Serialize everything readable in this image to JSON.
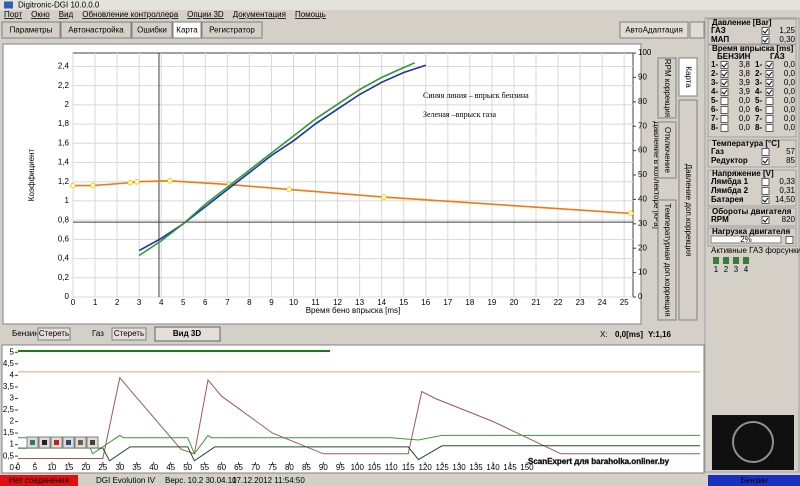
{
  "window": {
    "title": "Digitronic-DGI  10.0.0.0"
  },
  "menu": [
    "Порт",
    "Окно",
    "Вид",
    "Обновление контроллера",
    "Опции 3D",
    "Документация",
    "Помощь"
  ],
  "tabs": [
    "Параметры",
    "Автонастройка",
    "Ошибки",
    "Карта",
    "Регистратор"
  ],
  "autoadapt_button": "АвтоАдаптация",
  "side_tabs": [
    "Карта",
    "RPM коррекция",
    "Отключение",
    "Температурная доп.коррекция",
    "Давление доп.коррекция"
  ],
  "map_chart": {
    "type": "line",
    "annotations": [
      {
        "text": "Синяя линия – впрыск бензина",
        "color": "#1a1aff"
      },
      {
        "text": "Зеленая –впрыск газа",
        "color": "#2e9a2e"
      }
    ],
    "xlabel": "Время бено впрыска [ms]",
    "ylabel": "Коэффициент",
    "y2label": "Давление в коллекторе [kPa]",
    "xlim": [
      0,
      25.4
    ],
    "xticks": [
      0,
      1,
      2,
      3,
      4,
      5,
      6,
      7,
      8,
      9,
      10,
      11,
      12,
      13,
      14,
      15,
      16,
      17,
      18,
      19,
      20,
      21,
      22,
      23,
      24,
      25
    ],
    "ylim": [
      0,
      2.54
    ],
    "yticks": [
      0,
      {
        "value": 0.2,
        "label": "0,2"
      },
      {
        "value": 0.4,
        "label": "0,4"
      },
      {
        "value": 0.6,
        "label": "0,6"
      },
      {
        "value": 0.8,
        "label": "0,8"
      },
      1,
      {
        "value": 1.2,
        "label": "1,2"
      },
      {
        "value": 1.4,
        "label": "1,4"
      },
      {
        "value": 1.6,
        "label": "1,6"
      },
      {
        "value": 1.8,
        "label": "1,8"
      },
      2,
      {
        "value": 2.2,
        "label": "2,2"
      },
      {
        "value": 2.4,
        "label": "2,4"
      }
    ],
    "y2lim": [
      0,
      100
    ],
    "y2ticks": [
      0,
      10,
      20,
      30,
      40,
      50,
      60,
      70,
      80,
      90,
      100
    ],
    "grid": true,
    "series": [
      {
        "color": "#f07a10",
        "marker_color": "#ffff80",
        "x": [
          0,
          0.9,
          2.6,
          2.9,
          4.4,
          7.1,
          9.8,
          14.1,
          25.3
        ],
        "values": [
          1.16,
          1.16,
          1.19,
          1.2,
          1.21,
          1.17,
          1.12,
          1.04,
          0.87
        ]
      },
      {
        "color": "#1c2fb0",
        "axis": "y2",
        "x": [
          3,
          4,
          5,
          6,
          7,
          8,
          9,
          10,
          11,
          12,
          13,
          14,
          15,
          16
        ],
        "values": [
          19,
          24,
          30,
          37,
          44,
          51,
          58,
          64,
          71,
          77,
          83,
          88,
          92,
          95
        ]
      },
      {
        "color": "#2e9a2e",
        "axis": "y2",
        "x": [
          3,
          4,
          5,
          6,
          7,
          8,
          9,
          10,
          11,
          12,
          13,
          14,
          15,
          15.5
        ],
        "values": [
          17,
          23,
          30,
          38,
          45,
          52,
          59,
          66,
          73,
          79,
          85,
          90,
          94,
          96
        ]
      },
      {
        "color": "#2e9a2e",
        "style": "dots",
        "x": [
          3.1,
          3.4,
          3.7,
          4.1,
          4.6,
          5,
          5.5,
          6,
          6.5,
          7,
          7.5,
          8,
          8.5,
          9,
          9.5,
          10,
          10.5,
          11,
          11.5,
          12,
          12.5,
          13,
          13.5,
          14,
          14.5,
          15
        ],
        "values": [
          16,
          20,
          22,
          27,
          30,
          33,
          38,
          40,
          45,
          50,
          52,
          57,
          60,
          64,
          67,
          70,
          74,
          76,
          79,
          82,
          86,
          88,
          90,
          93,
          95,
          96
        ]
      }
    ]
  },
  "map_controls": {
    "petrol": "Бензин",
    "clear_petrol": "Стереть",
    "gas": "Газ",
    "clear_gas": "Стереть",
    "view3d": "Вид 3D",
    "x_label": "X:",
    "x_value": "0,0[ms]",
    "y_value": "Y:1,16"
  },
  "scope_chart": {
    "type": "line",
    "xlim": [
      0,
      201
    ],
    "xticks": [
      0,
      5,
      10,
      15,
      20,
      25,
      30,
      35,
      40,
      45,
      50,
      55,
      60,
      65,
      70,
      75,
      80,
      85,
      90,
      95,
      100,
      105,
      110,
      115,
      120,
      125,
      130,
      135,
      140,
      145,
      150
    ],
    "ylim": [
      -0.1,
      5.1
    ],
    "yticks": [
      0,
      {
        "value": 0.5,
        "label": "0,5"
      },
      1,
      {
        "value": 1.5,
        "label": "1,5"
      },
      2,
      {
        "value": 2.5,
        "label": "2,5"
      },
      3,
      {
        "value": 3.5,
        "label": "3,5"
      },
      4,
      {
        "value": 4.5,
        "label": "4,5"
      },
      5
    ],
    "series": [
      {
        "color": "#e8a070",
        "x": [
          0,
          201
        ],
        "values": [
          4.15,
          4.15
        ]
      },
      {
        "color": "#a05a50",
        "x": [
          0,
          25,
          30,
          34,
          48,
          52,
          56,
          60,
          75,
          90,
          115,
          119,
          123,
          140,
          160,
          201
        ],
        "values": [
          0.4,
          0.4,
          3.9,
          3.2,
          0.8,
          0.6,
          3.8,
          3.1,
          1.5,
          0.6,
          0.6,
          3.3,
          3.0,
          2.0,
          0.6,
          0.6
        ]
      },
      {
        "color": "#3a9a3a",
        "x": [
          0,
          20,
          22,
          30,
          31,
          50,
          52,
          56,
          57,
          110,
          118,
          125,
          201
        ],
        "values": [
          1.3,
          1.3,
          0.6,
          1.4,
          1.3,
          1.3,
          0.6,
          1.4,
          1.3,
          1.3,
          1.2,
          1.4,
          1.4
        ]
      },
      {
        "color": "#205020",
        "x": [
          0,
          25,
          27,
          33,
          50,
          52,
          58,
          115,
          118,
          125,
          201
        ],
        "values": [
          0.85,
          0.85,
          0.3,
          0.9,
          0.9,
          0.3,
          0.9,
          0.9,
          0.35,
          0.95,
          0.95
        ]
      }
    ]
  },
  "watermark": "ScanExpert для baraholka.onliner.by",
  "status": {
    "connection": "Нет соединения",
    "device": "DGI Evolution IV",
    "version": "Верс. 10.2  30.04.10",
    "datetime": "17.12.2012 11:54:50",
    "fuel": "Бензин"
  },
  "panel": {
    "pressure": {
      "title": "Давление [Bar]",
      "gas_label": "ГАЗ",
      "gas": "1,25",
      "map_label": "МАП",
      "map": "0,30"
    },
    "injection": {
      "title": "Время впрыска [ms]",
      "petrol_header": "БЕНЗИН",
      "gas_header": "ГАЗ",
      "rows": [
        [
          "1-",
          "3,8",
          "1-",
          "0,0"
        ],
        [
          "2-",
          "3,8",
          "2-",
          "0,0"
        ],
        [
          "3-",
          "3,9",
          "3-",
          "0,0"
        ],
        [
          "4-",
          "3,9",
          "4-",
          "0,0"
        ],
        [
          "5-",
          "0,0",
          "5-",
          "0,0"
        ],
        [
          "6-",
          "0,0",
          "6-",
          "0,0"
        ],
        [
          "7-",
          "0,0",
          "7-",
          "0,0"
        ],
        [
          "8-",
          "0,0",
          "8-",
          "0,0"
        ]
      ]
    },
    "temperature": {
      "title": "Температура [°C]",
      "gas_label": "Газ",
      "gas": "57",
      "reducer_label": "Редуктор",
      "reducer": "85"
    },
    "voltage": {
      "title": "Напряжение [V]",
      "lambda1_label": "Лямбда 1",
      "lambda1": "0,33",
      "lambda2_label": "Лямбда 2",
      "lambda2": "0,31",
      "battery_label": "Батарея",
      "battery": "14,50"
    },
    "rpm": {
      "title": "Обороты двигателя",
      "label": "RPM",
      "value": "820"
    },
    "load": {
      "title": "Нагрузка двигателя",
      "value": "2%"
    },
    "injectors": {
      "title": "Активные ГАЗ форсунки",
      "labels": [
        "1",
        "2",
        "3",
        "4"
      ]
    }
  }
}
